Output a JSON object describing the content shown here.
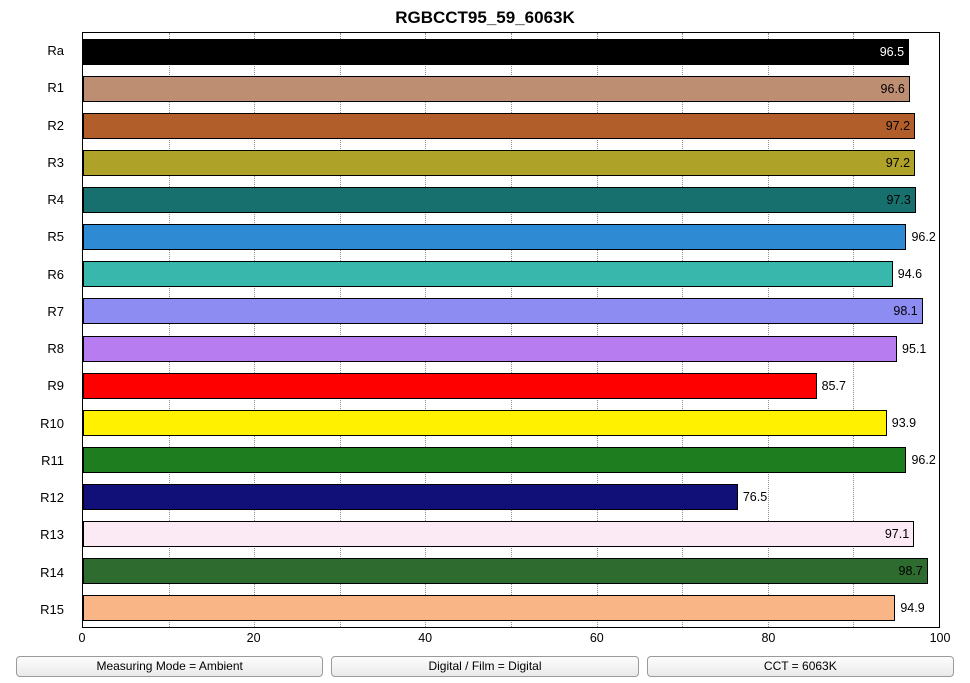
{
  "title": "RGBCCT95_59_6063K",
  "chart_data": {
    "type": "bar",
    "orientation": "horizontal",
    "title": "RGBCCT95_59_6063K",
    "xlabel": "",
    "ylabel": "",
    "xlim": [
      0,
      100
    ],
    "x_ticks": [
      0,
      20,
      40,
      60,
      80,
      100
    ],
    "grid": "vertical dotted lines every 10 units",
    "legend": "none",
    "categories": [
      "Ra",
      "R1",
      "R2",
      "R3",
      "R4",
      "R5",
      "R6",
      "R7",
      "R8",
      "R9",
      "R10",
      "R11",
      "R12",
      "R13",
      "R14",
      "R15"
    ],
    "values": [
      96.5,
      96.6,
      97.2,
      97.2,
      97.3,
      96.2,
      94.6,
      98.1,
      95.1,
      85.7,
      93.9,
      96.2,
      76.5,
      97.1,
      98.7,
      94.9
    ],
    "colors": [
      "#000000",
      "#BE8E72",
      "#B25E2B",
      "#AFA229",
      "#17706E",
      "#2E8BD3",
      "#38B8AC",
      "#8C8CF2",
      "#B77CF0",
      "#FF0000",
      "#FFF100",
      "#1E7D1E",
      "#101078",
      "#FBE9F3",
      "#2E6B2E",
      "#FAB586"
    ]
  },
  "footer": {
    "items": [
      "Measuring Mode = Ambient",
      "Digital / Film = Digital",
      "CCT = 6063K"
    ]
  }
}
